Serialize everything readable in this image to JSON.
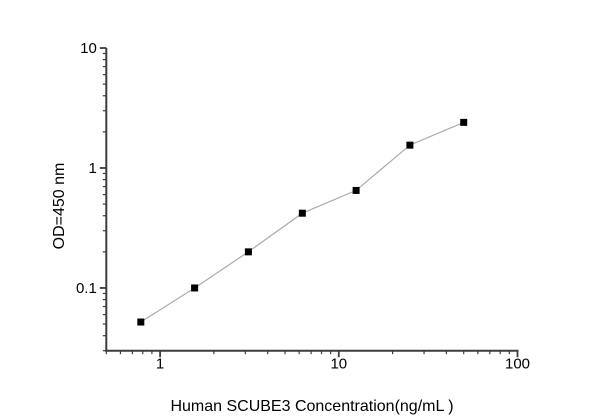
{
  "figure": {
    "background": "#ffffff"
  },
  "chart_data": {
    "type": "line",
    "x": [
      0.78,
      1.56,
      3.12,
      6.25,
      12.5,
      25,
      50
    ],
    "y": [
      0.052,
      0.1,
      0.2,
      0.42,
      0.65,
      1.55,
      2.4
    ],
    "xlabel": "Human SCUBE3 Concentration(ng/mL )",
    "ylabel": "OD=450 nm",
    "xscale": "log",
    "yscale": "log",
    "xlim": [
      0.5,
      100
    ],
    "ylim": [
      0.03,
      10
    ],
    "x_ticks": {
      "values": [
        1,
        10,
        100
      ],
      "labels": [
        "1",
        "10",
        "100"
      ]
    },
    "y_ticks": {
      "values": [
        0.1,
        1,
        10
      ],
      "labels": [
        "0.1",
        "1",
        "10"
      ]
    },
    "grid": false,
    "legend": false,
    "marker": "filled-square",
    "colors": {
      "axis": "#3d3d3d",
      "line": "#ababab",
      "marker": "#000000",
      "text": "#000000"
    }
  }
}
